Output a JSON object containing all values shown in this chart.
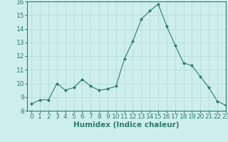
{
  "x": [
    0,
    1,
    2,
    3,
    4,
    5,
    6,
    7,
    8,
    9,
    10,
    11,
    12,
    13,
    14,
    15,
    16,
    17,
    18,
    19,
    20,
    21,
    22,
    23
  ],
  "y": [
    8.5,
    8.8,
    8.8,
    10.0,
    9.5,
    9.7,
    10.3,
    9.8,
    9.5,
    9.6,
    9.8,
    11.8,
    13.1,
    14.7,
    15.3,
    15.8,
    14.2,
    12.8,
    11.5,
    11.3,
    10.5,
    9.7,
    8.7,
    8.4
  ],
  "xlabel": "Humidex (Indice chaleur)",
  "ylim": [
    8,
    16
  ],
  "xlim": [
    -0.5,
    23
  ],
  "yticks": [
    8,
    9,
    10,
    11,
    12,
    13,
    14,
    15,
    16
  ],
  "xticks": [
    0,
    1,
    2,
    3,
    4,
    5,
    6,
    7,
    8,
    9,
    10,
    11,
    12,
    13,
    14,
    15,
    16,
    17,
    18,
    19,
    20,
    21,
    22,
    23
  ],
  "line_color": "#2a7d6e",
  "marker": "D",
  "marker_size": 2.0,
  "bg_color": "#ceeeed",
  "grid_color": "#b0d8d5",
  "xlabel_fontsize": 7.5,
  "tick_fontsize": 6.5,
  "spine_color": "#2a7d6e"
}
